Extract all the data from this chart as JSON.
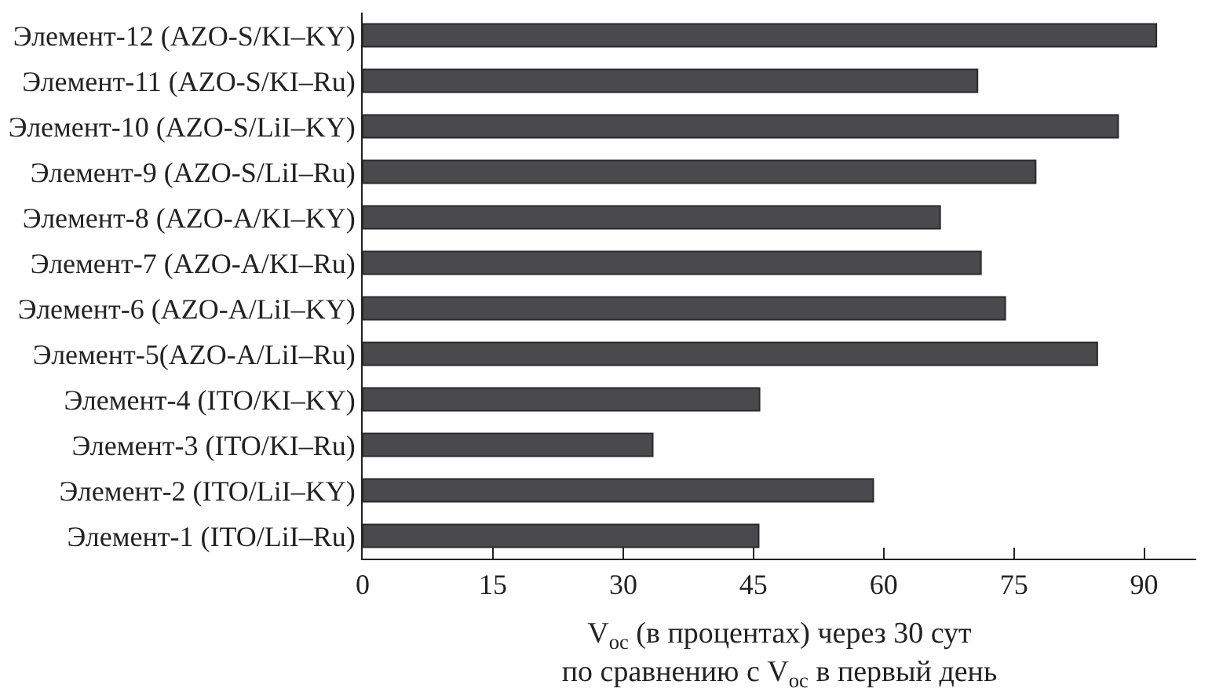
{
  "chart_data": {
    "type": "bar",
    "orientation": "horizontal",
    "xlabel": "V$_{oc}$ (в процентах) через 30 сут\nпо сравнению с V$_{oc}$ в первый день",
    "categories": [
      "Элемент-12 (AZO-S/KI–KY)",
      "Элемент-11 (AZO-S/KI–Ru)",
      "Элемент-10 (AZO-S/LiI–KY)",
      "Элемент-9 (AZO-S/LiI–Ru)",
      "Элемент-8 (AZO-A/KI–KY)",
      "Элемент-7 (AZO-A/KI–Ru)",
      "Элемент-6 (AZO-A/LiI–KY)",
      "Элемент-5(AZO-A/LiI–Ru)",
      "Элемент-4 (ITO/KI–KY)",
      "Элемент-3 (ITO/KI–Ru)",
      "Элемент-2 (ITO/LiI–KY)",
      "Элемент-1 (ITO/LiI–Ru)"
    ],
    "values": [
      91.4,
      70.8,
      87.0,
      77.5,
      66.5,
      71.2,
      74.0,
      84.6,
      45.7,
      33.4,
      58.8,
      45.6
    ],
    "color": "#4a4a4c",
    "xlim": [
      0,
      96
    ],
    "xticks": [
      0,
      15,
      30,
      45,
      60,
      75,
      90
    ]
  }
}
